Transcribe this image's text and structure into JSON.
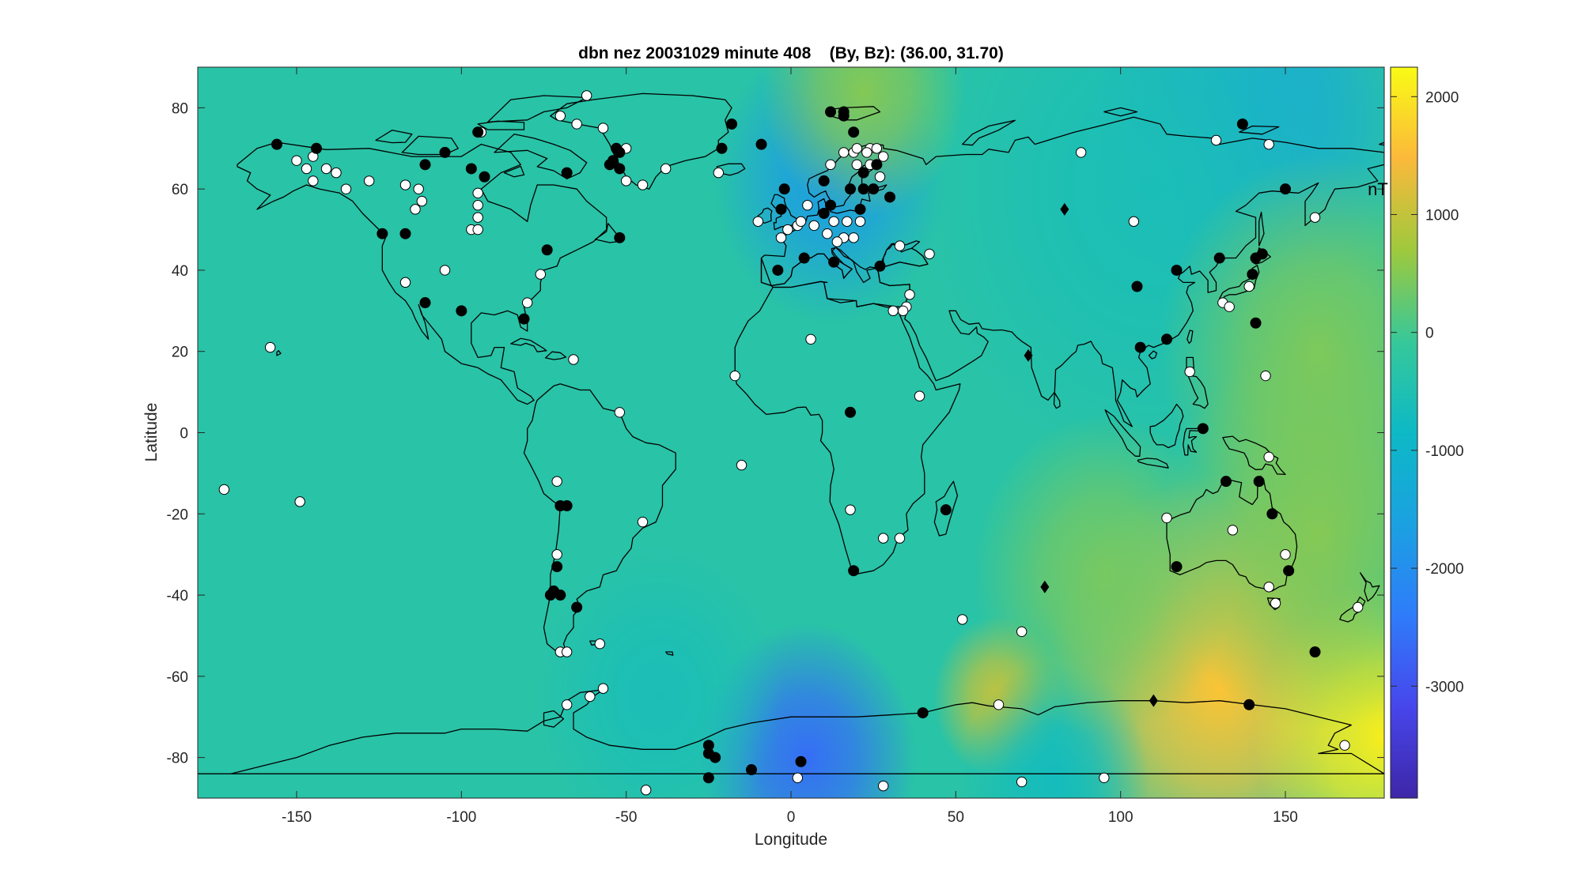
{
  "chart_data": {
    "type": "heatmap",
    "title": "dbn nez 20031029 minute 408    (By, Bz): (36.00, 31.70)",
    "xlabel": "Longitude",
    "ylabel": "Latitude",
    "xlim": [
      -180,
      180
    ],
    "ylim": [
      -90,
      90
    ],
    "xticks": [
      -150,
      -100,
      -50,
      0,
      50,
      100,
      150
    ],
    "yticks": [
      -80,
      -60,
      -40,
      -20,
      0,
      20,
      40,
      60,
      80
    ],
    "colorbar": {
      "colormap": "parula",
      "clim": [
        -3950,
        2250
      ],
      "ticks": [
        2000,
        1000,
        0,
        -1000,
        -2000,
        -3000
      ]
    },
    "annotation": {
      "text": "nT",
      "lon": 175,
      "lat": 60
    },
    "field_features": [
      {
        "lon": 12,
        "lat": 62,
        "value": -1700,
        "spread": 16
      },
      {
        "lon": 140,
        "lat": 78,
        "value": -1500,
        "spread": 22
      },
      {
        "lon": 5,
        "lat": -80,
        "value": -2600,
        "spread": 15
      },
      {
        "lon": 110,
        "lat": 60,
        "value": -600,
        "spread": 32
      },
      {
        "lon": 22,
        "lat": 84,
        "value": 500,
        "spread": 14
      },
      {
        "lon": 130,
        "lat": -63,
        "value": 1600,
        "spread": 24
      },
      {
        "lon": 180,
        "lat": -75,
        "value": 2100,
        "spread": 18
      },
      {
        "lon": 63,
        "lat": -65,
        "value": 1000,
        "spread": 9
      },
      {
        "lon": 80,
        "lat": -85,
        "value": -700,
        "spread": 13
      },
      {
        "lon": 160,
        "lat": 20,
        "value": 450,
        "spread": 22
      },
      {
        "lon": 160,
        "lat": -25,
        "value": 500,
        "spread": 22
      },
      {
        "lon": -40,
        "lat": -65,
        "value": -600,
        "spread": 17
      },
      {
        "lon": 95,
        "lat": -35,
        "value": 400,
        "spread": 18
      }
    ],
    "stations_black": [
      [
        -156,
        71
      ],
      [
        -144,
        70
      ],
      [
        -111,
        66
      ],
      [
        -105,
        69
      ],
      [
        -95,
        74
      ],
      [
        -97,
        65
      ],
      [
        -93,
        63
      ],
      [
        -68,
        64
      ],
      [
        -53,
        70
      ],
      [
        -52,
        69
      ],
      [
        -54,
        67
      ],
      [
        -52,
        65
      ],
      [
        -55,
        66
      ],
      [
        -18,
        76
      ],
      [
        -21,
        70
      ],
      [
        -9,
        71
      ],
      [
        12,
        79
      ],
      [
        16,
        78
      ],
      [
        19,
        74
      ],
      [
        16,
        79
      ],
      [
        10,
        62
      ],
      [
        22,
        64
      ],
      [
        18,
        60
      ],
      [
        25,
        60
      ],
      [
        30,
        58
      ],
      [
        26,
        66
      ],
      [
        22,
        60
      ],
      [
        -2,
        60
      ],
      [
        -3,
        55
      ],
      [
        10,
        54
      ],
      [
        12,
        56
      ],
      [
        21,
        55
      ],
      [
        13,
        42
      ],
      [
        4,
        43
      ],
      [
        -4,
        40
      ],
      [
        27,
        41
      ],
      [
        -52,
        48
      ],
      [
        -74,
        45
      ],
      [
        -124,
        49
      ],
      [
        -117,
        49
      ],
      [
        -111,
        32
      ],
      [
        -100,
        30
      ],
      [
        -81,
        28
      ],
      [
        105,
        36
      ],
      [
        117,
        40
      ],
      [
        130,
        43
      ],
      [
        143,
        44
      ],
      [
        141,
        43
      ],
      [
        140,
        39
      ],
      [
        141,
        27
      ],
      [
        114,
        23
      ],
      [
        106,
        21
      ],
      [
        150,
        60
      ],
      [
        137,
        76
      ],
      [
        125,
        1
      ],
      [
        18,
        5
      ],
      [
        47,
        -19
      ],
      [
        19,
        -34
      ],
      [
        -70,
        -18
      ],
      [
        -68,
        -18
      ],
      [
        -71,
        -33
      ],
      [
        -72,
        -39
      ],
      [
        -73,
        -40
      ],
      [
        -70,
        -40
      ],
      [
        -65,
        -43
      ],
      [
        159,
        -54
      ],
      [
        117,
        -33
      ],
      [
        146,
        -20
      ],
      [
        151,
        -34
      ],
      [
        142,
        -12
      ],
      [
        132,
        -12
      ],
      [
        40,
        -69
      ],
      [
        139,
        -67
      ],
      [
        -25,
        -77
      ],
      [
        -25,
        -79
      ],
      [
        -23,
        -80
      ],
      [
        -12,
        -83
      ],
      [
        -25,
        -85
      ],
      [
        3,
        -81
      ]
    ],
    "stations_white": [
      [
        -150,
        67
      ],
      [
        -147,
        65
      ],
      [
        -145,
        68
      ],
      [
        -141,
        65
      ],
      [
        -138,
        64
      ],
      [
        -145,
        62
      ],
      [
        -135,
        60
      ],
      [
        -128,
        62
      ],
      [
        -117,
        61
      ],
      [
        -113,
        60
      ],
      [
        -112,
        57
      ],
      [
        -114,
        55
      ],
      [
        -117,
        37
      ],
      [
        -105,
        40
      ],
      [
        -95,
        56
      ],
      [
        -95,
        59
      ],
      [
        -95,
        53
      ],
      [
        -97,
        50
      ],
      [
        -95,
        50
      ],
      [
        -94,
        74
      ],
      [
        -62,
        83
      ],
      [
        -70,
        78
      ],
      [
        -65,
        76
      ],
      [
        -57,
        75
      ],
      [
        -50,
        70
      ],
      [
        -45,
        61
      ],
      [
        -50,
        62
      ],
      [
        -38,
        65
      ],
      [
        -22,
        64
      ],
      [
        -76,
        39
      ],
      [
        -80,
        32
      ],
      [
        -66,
        18
      ],
      [
        -158,
        21
      ],
      [
        -172,
        -14
      ],
      [
        -149,
        -17
      ],
      [
        -52,
        5
      ],
      [
        -17,
        14
      ],
      [
        6,
        23
      ],
      [
        -15,
        -8
      ],
      [
        18,
        -19
      ],
      [
        28,
        -26
      ],
      [
        33,
        -26
      ],
      [
        -45,
        -22
      ],
      [
        -71,
        -12
      ],
      [
        -71,
        -30
      ],
      [
        -58,
        -52
      ],
      [
        -70,
        -54
      ],
      [
        -68,
        -54
      ],
      [
        -57,
        -63
      ],
      [
        -61,
        -65
      ],
      [
        -68,
        -67
      ],
      [
        -44,
        -88
      ],
      [
        2,
        -85
      ],
      [
        28,
        -87
      ],
      [
        70,
        -86
      ],
      [
        95,
        -85
      ],
      [
        52,
        -46
      ],
      [
        70,
        -49
      ],
      [
        63,
        -67
      ],
      [
        168,
        -77
      ],
      [
        172,
        -43
      ],
      [
        147,
        -42
      ],
      [
        145,
        -38
      ],
      [
        150,
        -30
      ],
      [
        134,
        -24
      ],
      [
        114,
        -21
      ],
      [
        145,
        -6
      ],
      [
        144,
        14
      ],
      [
        121,
        15
      ],
      [
        139,
        36
      ],
      [
        131,
        32
      ],
      [
        133,
        31
      ],
      [
        104,
        52
      ],
      [
        145,
        71
      ],
      [
        129,
        72
      ],
      [
        88,
        69
      ],
      [
        159,
        53
      ],
      [
        35,
        31
      ],
      [
        31,
        30
      ],
      [
        34,
        30
      ],
      [
        36,
        34
      ],
      [
        39,
        9
      ],
      [
        42,
        44
      ],
      [
        33,
        46
      ],
      [
        16,
        69
      ],
      [
        19,
        69
      ],
      [
        20,
        70
      ],
      [
        24,
        70
      ],
      [
        26,
        70
      ],
      [
        23,
        69
      ],
      [
        28,
        68
      ],
      [
        24,
        66
      ],
      [
        20,
        66
      ],
      [
        27,
        63
      ],
      [
        12,
        66
      ],
      [
        5,
        56
      ],
      [
        -1,
        50
      ],
      [
        -10,
        52
      ],
      [
        2,
        51
      ],
      [
        -3,
        48
      ],
      [
        7,
        51
      ],
      [
        13,
        52
      ],
      [
        16,
        48
      ],
      [
        19,
        48
      ],
      [
        11,
        49
      ],
      [
        21,
        52
      ],
      [
        3,
        52
      ],
      [
        17,
        52
      ],
      [
        14,
        47
      ]
    ],
    "stations_diamond": [
      [
        83,
        55
      ],
      [
        72,
        19
      ],
      [
        77,
        -38
      ],
      [
        110,
        -66
      ]
    ]
  }
}
